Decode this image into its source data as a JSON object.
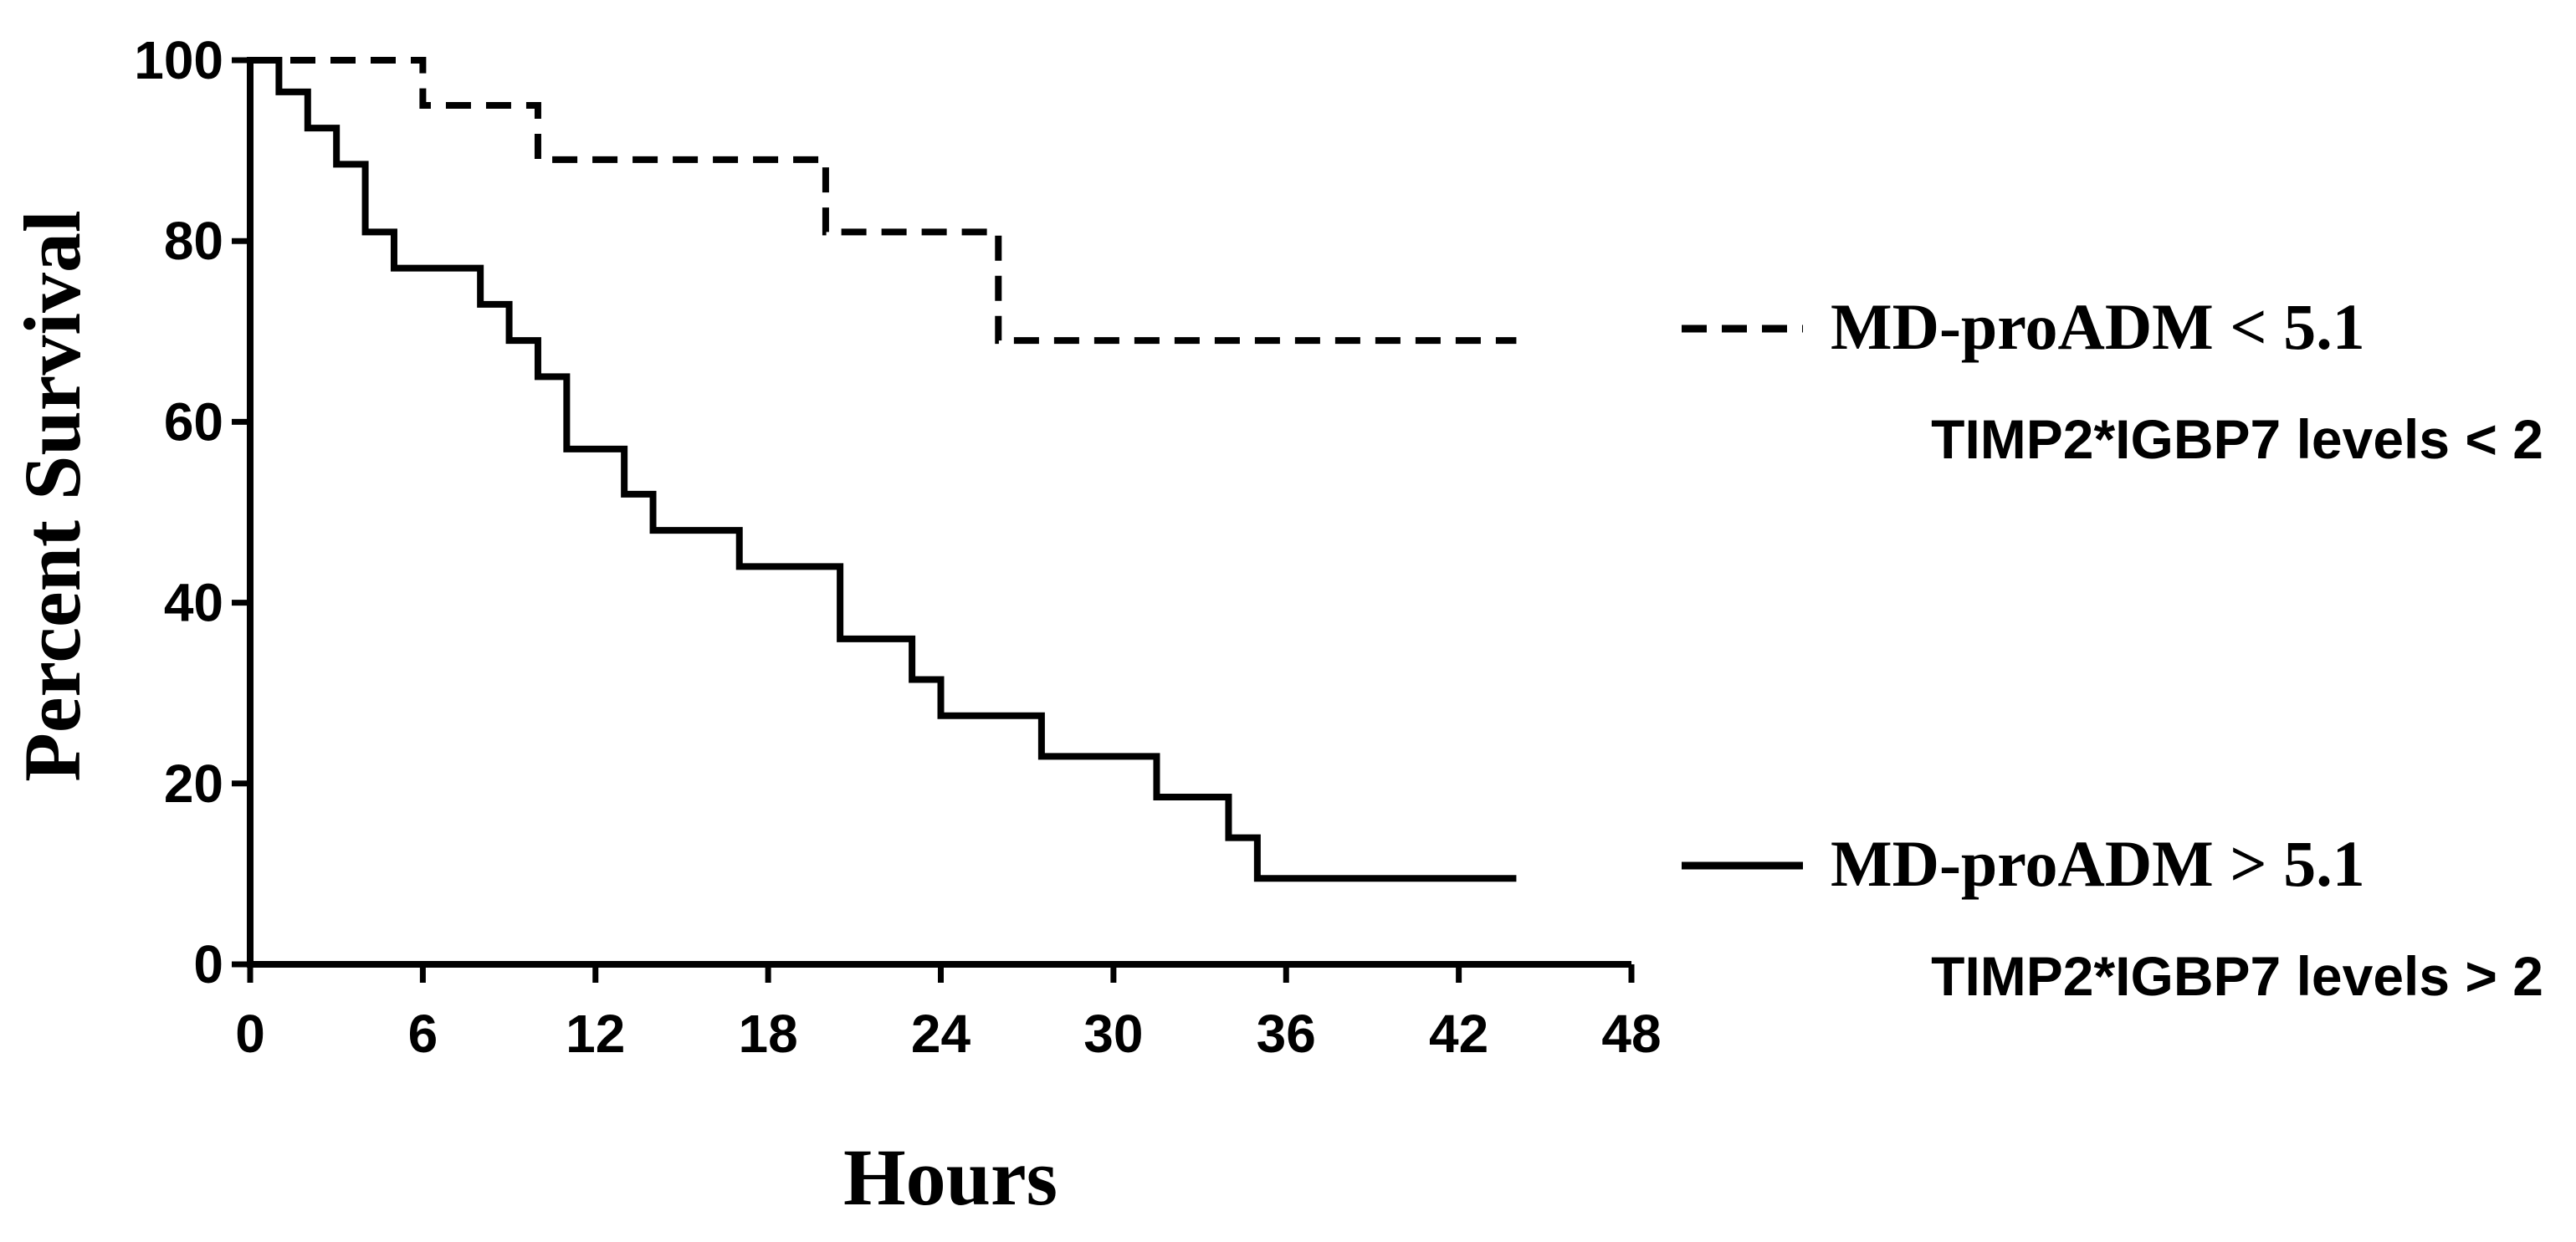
{
  "chart_data": {
    "type": "line",
    "step": true,
    "xlabel": "Hours",
    "ylabel": "Percent Survival",
    "xlim": [
      0,
      48
    ],
    "ylim": [
      0,
      100
    ],
    "xticks": [
      "0",
      "6",
      "12",
      "18",
      "24",
      "30",
      "36",
      "42",
      "48"
    ],
    "yticks": [
      "0",
      "20",
      "40",
      "60",
      "80",
      "100"
    ],
    "grid": false,
    "legend_position": "right",
    "series": [
      {
        "legend_line1": "MD-proADM < 5.1",
        "legend_line2": "TIMP2*IGBP7 levels < 2",
        "line_style": "dashed",
        "color": "#000000",
        "x": [
          0,
          6,
          10,
          20,
          26,
          44
        ],
        "y": [
          100,
          95,
          89,
          81,
          69,
          69
        ]
      },
      {
        "legend_line1": "MD-proADM > 5.1",
        "legend_line2": "TIMP2*IGBP7 levels > 2",
        "line_style": "solid",
        "color": "#000000",
        "x": [
          0,
          1,
          2,
          3,
          4,
          5,
          8,
          9,
          10,
          11,
          13,
          14,
          17,
          20.5,
          23,
          24,
          27.5,
          31.5,
          34,
          35,
          44
        ],
        "y": [
          100,
          96.5,
          92.5,
          88.5,
          81,
          77,
          73,
          69,
          65,
          57,
          52,
          48,
          44,
          36,
          31.5,
          27.5,
          23,
          18.5,
          14,
          9.5,
          9.5
        ]
      }
    ]
  }
}
